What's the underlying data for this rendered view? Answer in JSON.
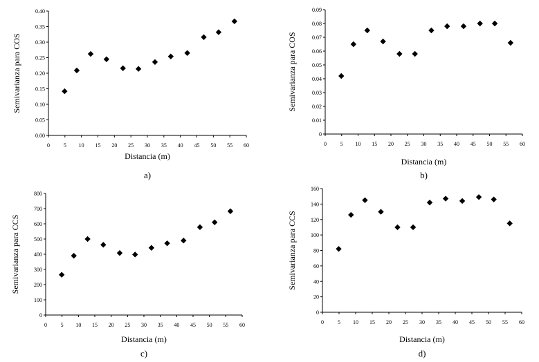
{
  "chart_data": [
    {
      "type": "scatter",
      "panel_label": "a)",
      "xlabel": "Distancia  (m)",
      "ylabel": "Semivarianza para COS",
      "xlim": [
        0,
        60
      ],
      "ylim": [
        0,
        0.4
      ],
      "xticks": [
        0,
        5,
        10,
        15,
        20,
        25,
        30,
        35,
        40,
        45,
        50,
        55,
        60
      ],
      "yticks": [
        0,
        0.05,
        0.1,
        0.15,
        0.2,
        0.25,
        0.3,
        0.35,
        0.4
      ],
      "ytick_labels": [
        "0.00",
        "0.05",
        "0.10",
        "0.15",
        "0.20",
        "0.25",
        "0.30",
        "0.35",
        "0.40"
      ],
      "x": [
        4.9,
        8.6,
        12.8,
        17.6,
        22.6,
        27.3,
        32.3,
        37.1,
        42.1,
        47.1,
        51.6,
        56.4
      ],
      "y": [
        0.142,
        0.209,
        0.262,
        0.245,
        0.216,
        0.214,
        0.236,
        0.254,
        0.265,
        0.316,
        0.332,
        0.367
      ]
    },
    {
      "type": "scatter",
      "panel_label": "b)",
      "xlabel": "Distancia  (m)",
      "ylabel": "Semivarianza para COS",
      "xlim": [
        0,
        60
      ],
      "ylim": [
        0,
        0.09
      ],
      "xticks": [
        0,
        5,
        10,
        15,
        20,
        25,
        30,
        35,
        40,
        45,
        50,
        55,
        60
      ],
      "yticks": [
        0,
        0.01,
        0.02,
        0.03,
        0.04,
        0.05,
        0.06,
        0.07,
        0.08,
        0.09
      ],
      "ytick_labels": [
        "0",
        "0.01",
        "0.02",
        "0.03",
        "0.04",
        "0.05",
        "0.06",
        "0.07",
        "0.08",
        "0.09"
      ],
      "x": [
        4.9,
        8.6,
        12.8,
        17.6,
        22.6,
        27.3,
        32.3,
        37.1,
        42.1,
        47.1,
        51.6,
        56.4
      ],
      "y": [
        0.042,
        0.065,
        0.075,
        0.067,
        0.058,
        0.058,
        0.075,
        0.078,
        0.078,
        0.08,
        0.08,
        0.066
      ]
    },
    {
      "type": "scatter",
      "panel_label": "c)",
      "xlabel": "Distancia  (m)",
      "ylabel": "Semivarianza para CCS",
      "xlim": [
        0,
        60
      ],
      "ylim": [
        0,
        800
      ],
      "xticks": [
        0,
        5,
        10,
        15,
        20,
        25,
        30,
        35,
        40,
        45,
        50,
        55,
        60
      ],
      "yticks": [
        0,
        100,
        200,
        300,
        400,
        500,
        600,
        700,
        800
      ],
      "ytick_labels": [
        "0",
        "100",
        "200",
        "300",
        "400",
        "500",
        "600",
        "700",
        "800"
      ],
      "x": [
        4.9,
        8.6,
        12.8,
        17.6,
        22.6,
        27.3,
        32.3,
        37.1,
        42.1,
        47.1,
        51.6,
        56.4
      ],
      "y": [
        265,
        390,
        500,
        462,
        408,
        398,
        442,
        472,
        490,
        578,
        610,
        683
      ]
    },
    {
      "type": "scatter",
      "panel_label": "d)",
      "xlabel": "Distancia  (m)",
      "ylabel": "Semivarianza para CCS",
      "xlim": [
        0,
        60
      ],
      "ylim": [
        0,
        160
      ],
      "xticks": [
        0,
        5,
        10,
        15,
        20,
        25,
        30,
        35,
        40,
        45,
        50,
        55,
        60
      ],
      "yticks": [
        0,
        20,
        40,
        60,
        80,
        100,
        120,
        140,
        160
      ],
      "ytick_labels": [
        "0",
        "20",
        "40",
        "60",
        "80",
        "100",
        "120",
        "140",
        "160"
      ],
      "x": [
        4.9,
        8.6,
        12.8,
        17.6,
        22.6,
        27.3,
        32.3,
        37.1,
        42.1,
        47.1,
        51.6,
        56.4
      ],
      "y": [
        82,
        126,
        145,
        130,
        110,
        110,
        142,
        147,
        144,
        149,
        146,
        115
      ]
    }
  ]
}
